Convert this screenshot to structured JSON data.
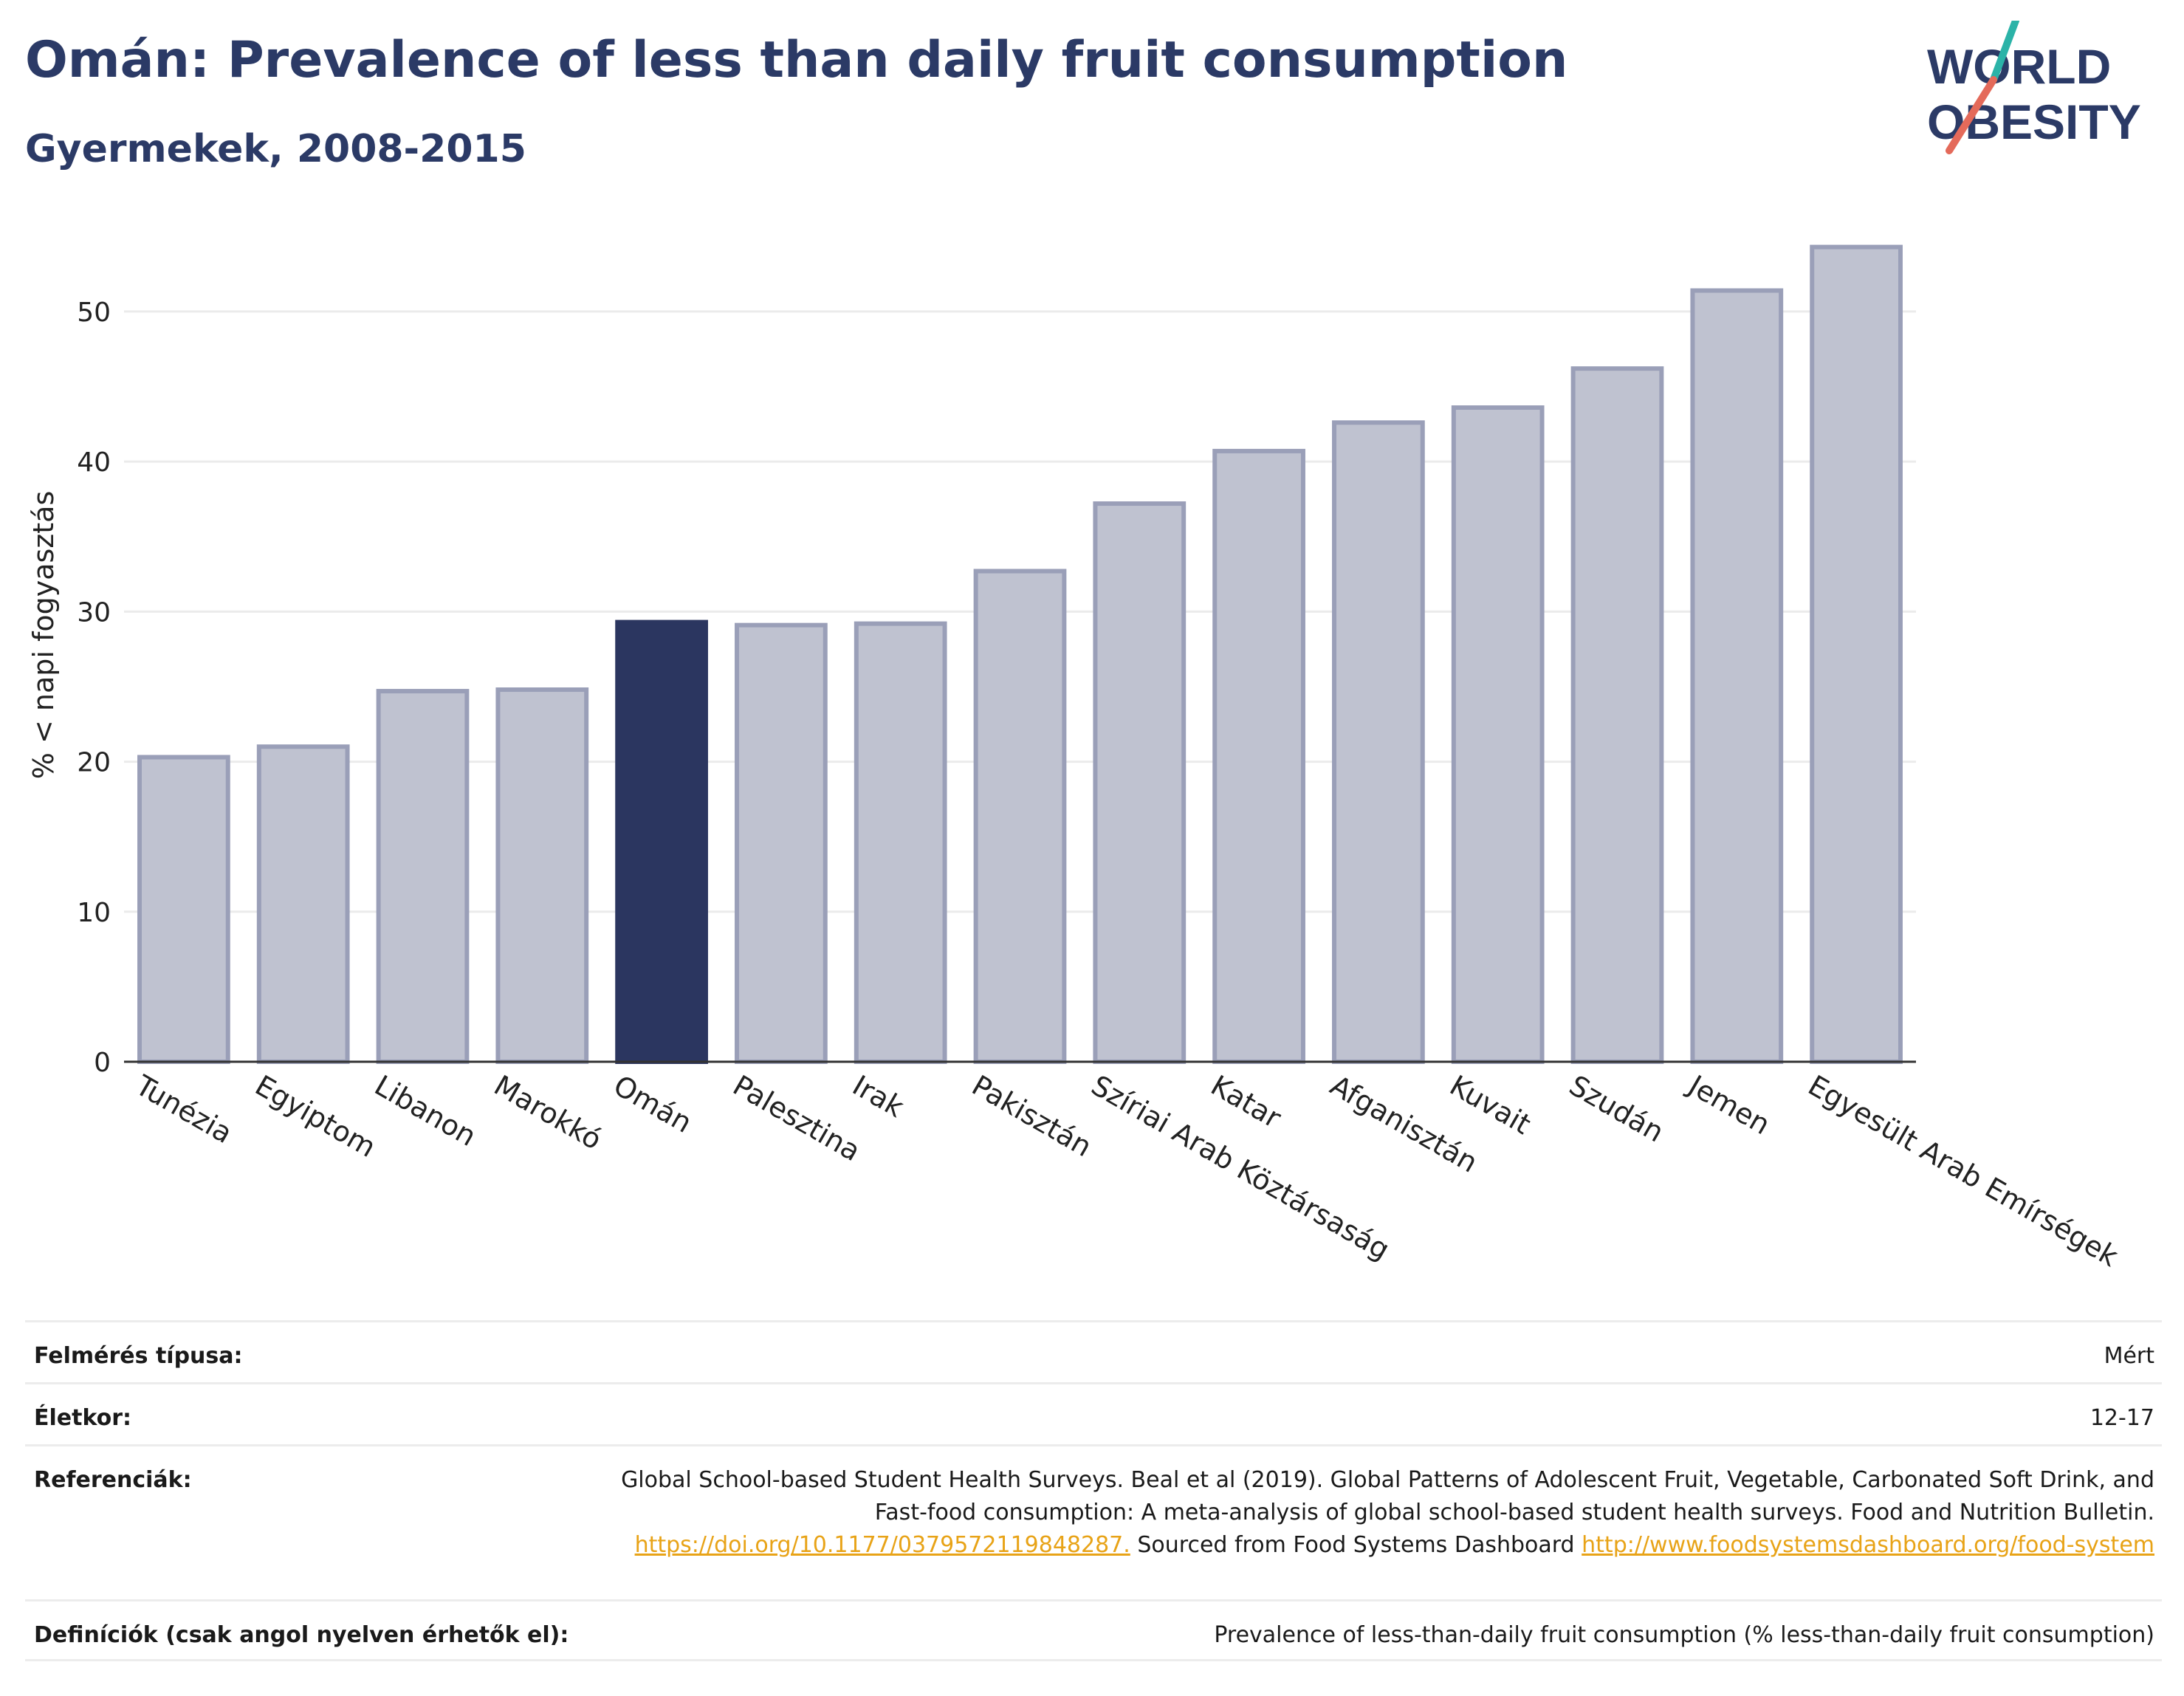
{
  "title": "Omán: Prevalence of less than daily fruit consumption",
  "subtitle": "Gyermekek, 2008-2015",
  "logo": {
    "line1": "WORLD",
    "line2": "OBESITY"
  },
  "colors": {
    "highlight": "#2b3660",
    "bar": "#bfc2d0",
    "bar_border": "#9a9fb8",
    "title": "#2b3a66",
    "link": "#e8a317"
  },
  "chart_data": {
    "type": "bar",
    "categories": [
      "Tunézia",
      "Egyiptom",
      "Libanon",
      "Marokkó",
      "Omán",
      "Palesztina",
      "Irak",
      "Pakisztán",
      "Szíriai Arab Köztársaság",
      "Katar",
      "Afganisztán",
      "Kuvait",
      "Szudán",
      "Jemen",
      "Egyesült Arab Emírségek"
    ],
    "values": [
      20.3,
      21.0,
      24.7,
      24.8,
      29.3,
      29.1,
      29.2,
      32.7,
      37.2,
      40.7,
      42.6,
      43.6,
      46.2,
      51.4,
      54.3
    ],
    "highlight": "Omán",
    "ylabel": "% < napi fogyasztás",
    "xlabel": "",
    "ylim": [
      0,
      56
    ],
    "yticks": [
      0,
      10,
      20,
      30,
      40,
      50
    ],
    "grid": true
  },
  "info": [
    {
      "label": "Felmérés típusa:",
      "value": "Mért"
    },
    {
      "label": "Életkor:",
      "value": "12-17"
    },
    {
      "label": "Referenciák:",
      "text1": "Global School-based Student Health Surveys. Beal et al (2019). Global Patterns of Adolescent Fruit, Vegetable, Carbonated Soft Drink, and Fast-food consumption: A meta-analysis of global school-based student health surveys. Food and Nutrition Bulletin.",
      "link1": "https://doi.org/10.1177/0379572119848287.",
      "text2": "Sourced from Food Systems Dashboard",
      "link2": "http://www.foodsystemsdashboard.org/food-system"
    },
    {
      "label": "Definíciók (csak angol nyelven érhetők el):",
      "value": "Prevalence of less-than-daily fruit consumption (% less-than-daily fruit consumption)"
    }
  ]
}
